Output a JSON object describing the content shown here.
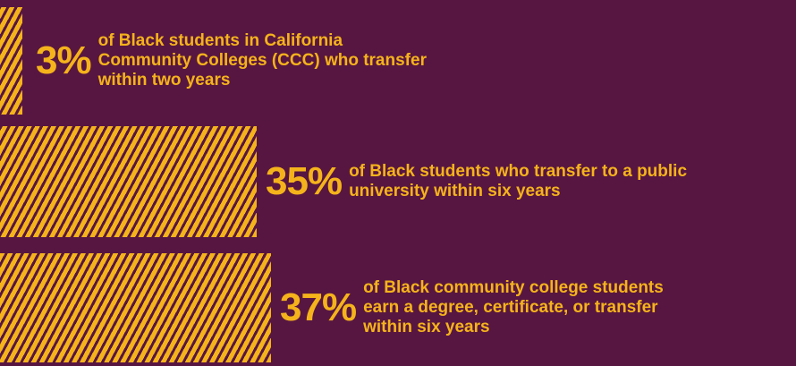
{
  "colors": {
    "background": "#571641",
    "accent": "#f5b31b"
  },
  "chart_data": {
    "type": "bar",
    "orientation": "horizontal",
    "xlim": [
      0,
      100
    ],
    "items": [
      {
        "label": "3%",
        "value": 3,
        "description": "of Black students in California Community Colleges (CCC) who transfer within two years"
      },
      {
        "label": "35%",
        "value": 35,
        "description": "of Black students who transfer to a public university within six years"
      },
      {
        "label": "37%",
        "value": 37,
        "description": "of Black community college students earn a degree, certificate, or transfer within six years"
      }
    ]
  }
}
